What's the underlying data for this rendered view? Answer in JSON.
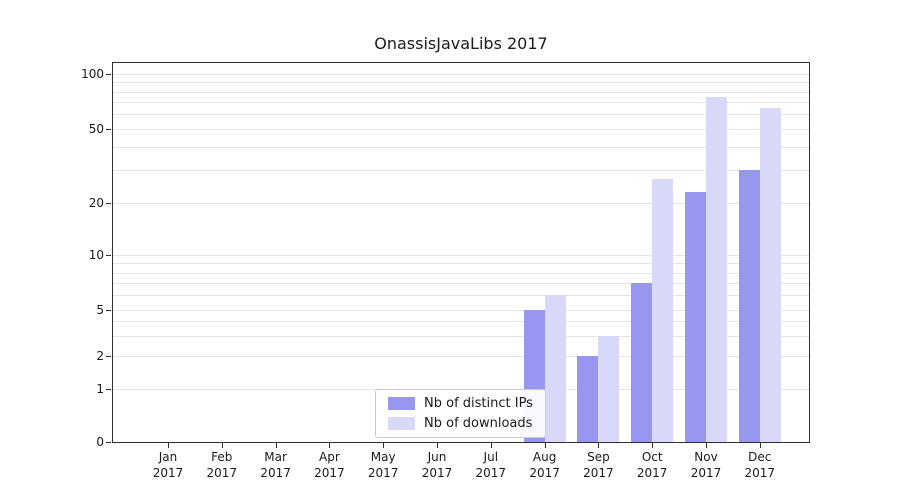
{
  "chart_data": {
    "type": "bar",
    "title": "OnassisJavaLibs 2017",
    "categories": [
      "Jan 2017",
      "Feb 2017",
      "Mar 2017",
      "Apr 2017",
      "May 2017",
      "Jun 2017",
      "Jul 2017",
      "Aug 2017",
      "Sep 2017",
      "Oct 2017",
      "Nov 2017",
      "Dec 2017"
    ],
    "series": [
      {
        "name": "Nb of distinct IPs",
        "color": "#9797ef",
        "values": [
          0,
          0,
          0,
          0,
          0,
          0,
          0,
          5,
          2,
          7,
          23,
          30
        ]
      },
      {
        "name": "Nb of downloads",
        "color": "#d8d8f9",
        "values": [
          0,
          0,
          0,
          0,
          0,
          0,
          0,
          6,
          3,
          27,
          75,
          65
        ]
      }
    ],
    "yticks": [
      0,
      1,
      2,
      5,
      10,
      20,
      50,
      100
    ],
    "ylim": [
      0,
      110
    ],
    "xlabel": "",
    "ylabel": "",
    "scale": "symlog",
    "grid": "horizontal",
    "legend_position": "lower-center-inside"
  },
  "colors": {
    "grid": "#e4e4e4",
    "axis": "#2e2e2e",
    "background": "#ffffff"
  }
}
